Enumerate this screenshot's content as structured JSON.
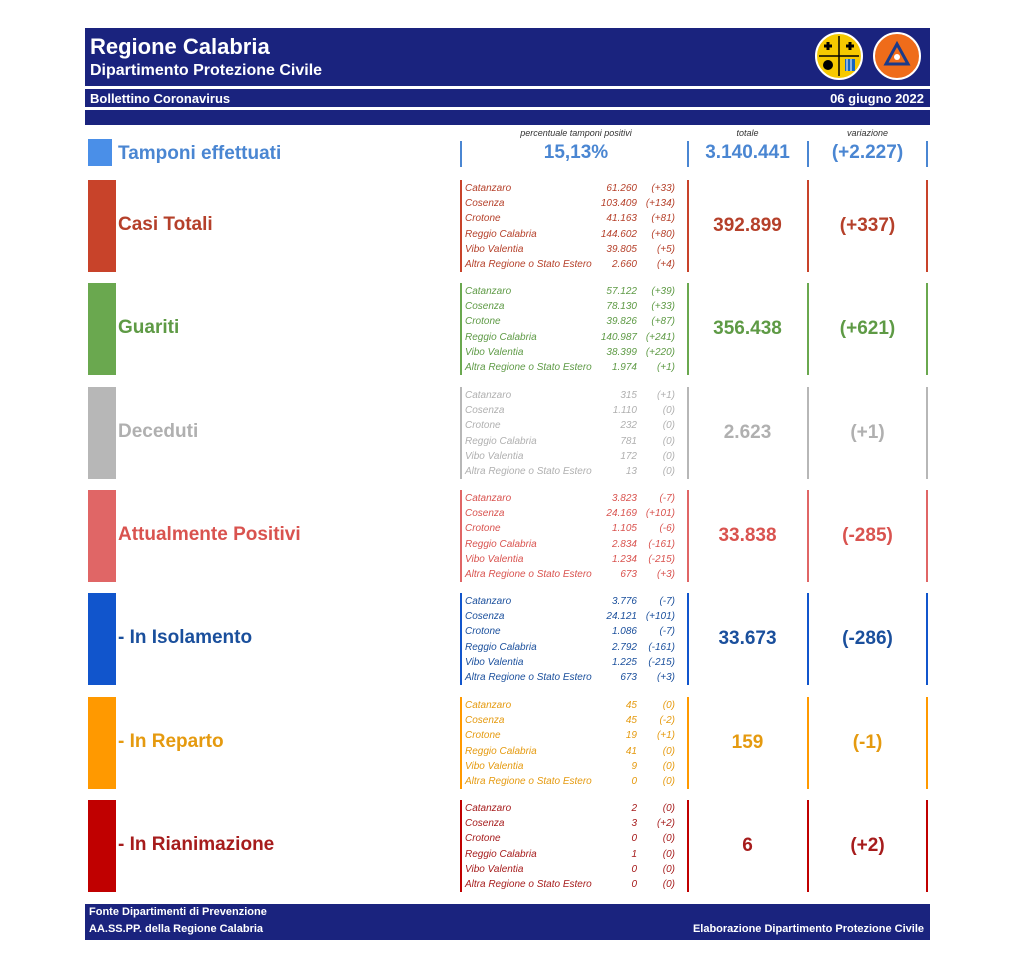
{
  "header": {
    "title": "Regione Calabria",
    "subtitle": "Dipartimento Protezione Civile",
    "bulletin": "Bollettino Coronavirus",
    "date": "06 giugno 2022",
    "logo_left": "regione-calabria-logo",
    "logo_right": "protezione-civile-logo"
  },
  "columns": {
    "perc": "percentuale tamponi positivi",
    "totale": "totale",
    "variazione": "variazione"
  },
  "tamponi": {
    "label": "Tamponi effettuati",
    "percent": "15,13%",
    "total": "3.140.441",
    "delta": "(+2.227)",
    "color": "#4a86d2"
  },
  "sections": [
    {
      "label": "Casi Totali",
      "total": "392.899",
      "delta": "(+337)",
      "color": "#c8432a",
      "text_color": "#b5402a",
      "rows": [
        {
          "name": "Catanzaro",
          "value": "61.260",
          "delta": "(+33)"
        },
        {
          "name": "Cosenza",
          "value": "103.409",
          "delta": "(+134)"
        },
        {
          "name": "Crotone",
          "value": "41.163",
          "delta": "(+81)"
        },
        {
          "name": "Reggio Calabria",
          "value": "144.602",
          "delta": "(+80)"
        },
        {
          "name": "Vibo Valentia",
          "value": "39.805",
          "delta": "(+5)"
        },
        {
          "name": "Altra Regione o Stato Estero",
          "value": "2.660",
          "delta": "(+4)"
        }
      ]
    },
    {
      "label": "Guariti",
      "total": "356.438",
      "delta": "(+621)",
      "color": "#6aa84f",
      "text_color": "#5e9a45",
      "rows": [
        {
          "name": "Catanzaro",
          "value": "57.122",
          "delta": "(+39)"
        },
        {
          "name": "Cosenza",
          "value": "78.130",
          "delta": "(+33)"
        },
        {
          "name": "Crotone",
          "value": "39.826",
          "delta": "(+87)"
        },
        {
          "name": "Reggio Calabria",
          "value": "140.987",
          "delta": "(+241)"
        },
        {
          "name": "Vibo Valentia",
          "value": "38.399",
          "delta": "(+220)"
        },
        {
          "name": "Altra Regione o Stato Estero",
          "value": "1.974",
          "delta": "(+1)"
        }
      ]
    },
    {
      "label": "Deceduti",
      "total": "2.623",
      "delta": "(+1)",
      "color": "#b7b7b7",
      "text_color": "#b0b0b0",
      "rows": [
        {
          "name": "Catanzaro",
          "value": "315",
          "delta": "(+1)"
        },
        {
          "name": "Cosenza",
          "value": "1.110",
          "delta": "(0)"
        },
        {
          "name": "Crotone",
          "value": "232",
          "delta": "(0)"
        },
        {
          "name": "Reggio Calabria",
          "value": "781",
          "delta": "(0)"
        },
        {
          "name": "Vibo Valentia",
          "value": "172",
          "delta": "(0)"
        },
        {
          "name": "Altra Regione o Stato Estero",
          "value": "13",
          "delta": "(0)"
        }
      ]
    },
    {
      "label": "Attualmente Positivi",
      "total": "33.838",
      "delta": "(-285)",
      "color": "#e06666",
      "text_color": "#d9534f",
      "rows": [
        {
          "name": "Catanzaro",
          "value": "3.823",
          "delta": "(-7)"
        },
        {
          "name": "Cosenza",
          "value": "24.169",
          "delta": "(+101)"
        },
        {
          "name": "Crotone",
          "value": "1.105",
          "delta": "(-6)"
        },
        {
          "name": "Reggio Calabria",
          "value": "2.834",
          "delta": "(-161)"
        },
        {
          "name": "Vibo Valentia",
          "value": "1.234",
          "delta": "(-215)"
        },
        {
          "name": "Altra Regione o Stato Estero",
          "value": "673",
          "delta": "(+3)"
        }
      ]
    },
    {
      "label": "- In Isolamento",
      "total": "33.673",
      "delta": "(-286)",
      "color": "#1155cc",
      "text_color": "#1a4f9c",
      "rows": [
        {
          "name": "Catanzaro",
          "value": "3.776",
          "delta": "(-7)"
        },
        {
          "name": "Cosenza",
          "value": "24.121",
          "delta": "(+101)"
        },
        {
          "name": "Crotone",
          "value": "1.086",
          "delta": "(-7)"
        },
        {
          "name": "Reggio Calabria",
          "value": "2.792",
          "delta": "(-161)"
        },
        {
          "name": "Vibo Valentia",
          "value": "1.225",
          "delta": "(-215)"
        },
        {
          "name": "Altra Regione o Stato Estero",
          "value": "673",
          "delta": "(+3)"
        }
      ]
    },
    {
      "label": "- In Reparto",
      "total": "159",
      "delta": "(-1)",
      "color": "#ff9900",
      "text_color": "#e59a0f",
      "rows": [
        {
          "name": "Catanzaro",
          "value": "45",
          "delta": "(0)"
        },
        {
          "name": "Cosenza",
          "value": "45",
          "delta": "(-2)"
        },
        {
          "name": "Crotone",
          "value": "19",
          "delta": "(+1)"
        },
        {
          "name": "Reggio Calabria",
          "value": "41",
          "delta": "(0)"
        },
        {
          "name": "Vibo Valentia",
          "value": "9",
          "delta": "(0)"
        },
        {
          "name": "Altra Regione o Stato Estero",
          "value": "0",
          "delta": "(0)"
        }
      ]
    },
    {
      "label": "- In Rianimazione",
      "total": "6",
      "delta": "(+2)",
      "color": "#c00000",
      "text_color": "#a61c1c",
      "rows": [
        {
          "name": "Catanzaro",
          "value": "2",
          "delta": "(0)"
        },
        {
          "name": "Cosenza",
          "value": "3",
          "delta": "(+2)"
        },
        {
          "name": "Crotone",
          "value": "0",
          "delta": "(0)"
        },
        {
          "name": "Reggio Calabria",
          "value": "1",
          "delta": "(0)"
        },
        {
          "name": "Vibo Valentia",
          "value": "0",
          "delta": "(0)"
        },
        {
          "name": "Altra Regione o Stato Estero",
          "value": "0",
          "delta": "(0)"
        }
      ]
    }
  ],
  "footer": {
    "line1": "Fonte Dipartimenti di Prevenzione",
    "line2": "AA.SS.PP.  della Regione Calabria",
    "right": "Elaborazione Dipartimento Protezione Civile"
  }
}
